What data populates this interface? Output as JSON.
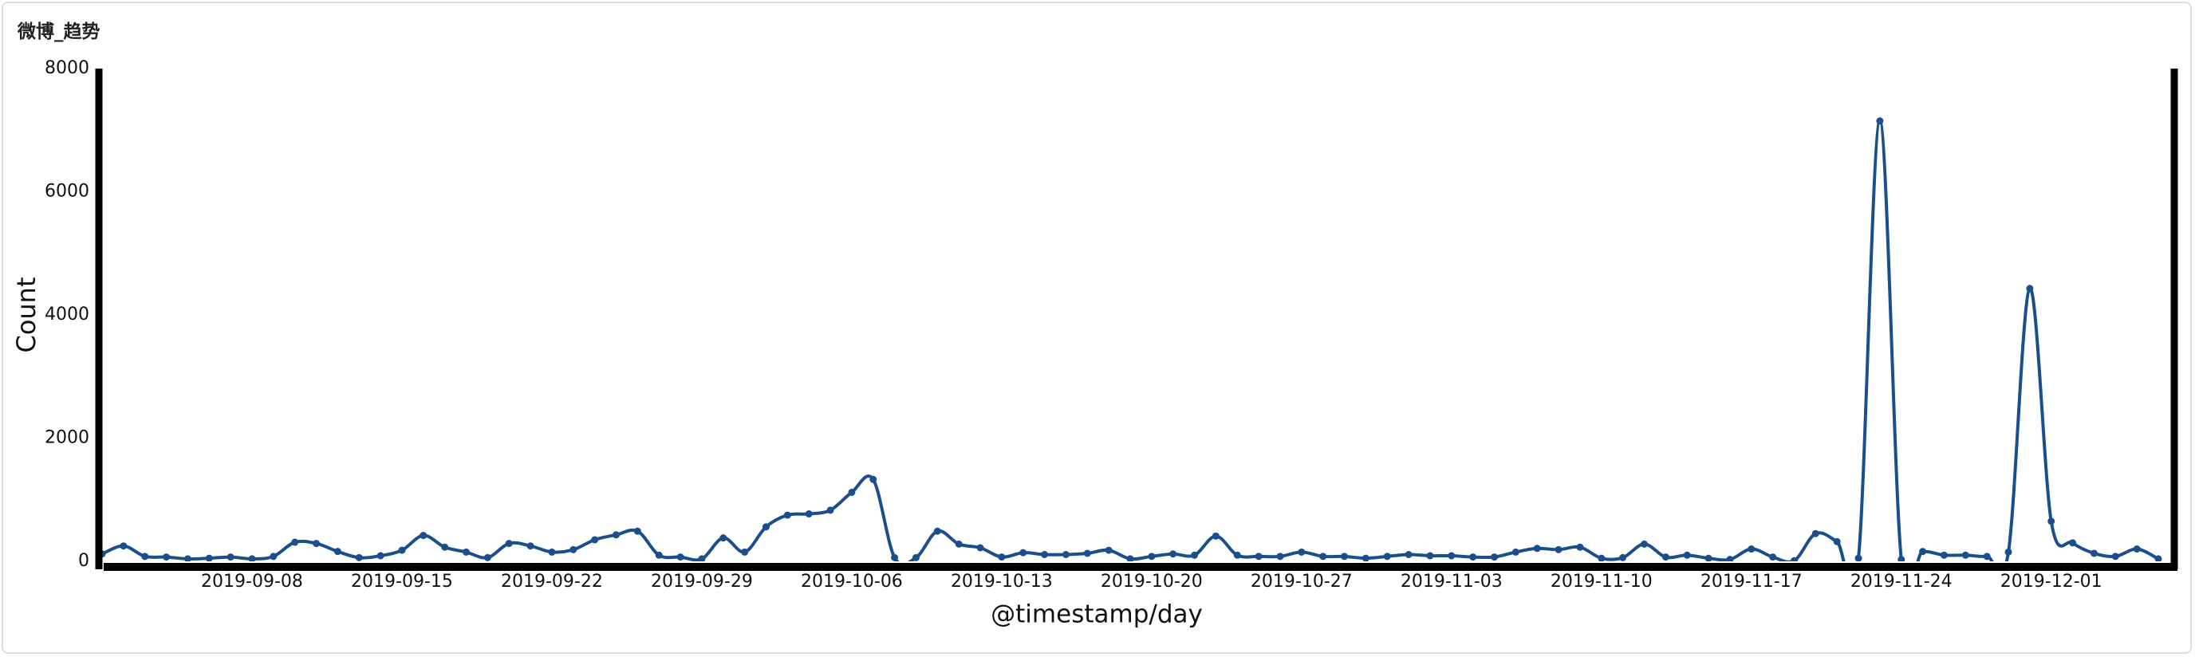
{
  "chart_data": {
    "type": "line",
    "title": "微博_趋势",
    "x_label": "@timestamp/day",
    "y_label": "Count",
    "color": "#1a4f8c",
    "x": [
      "2019-09-01",
      "2019-09-02",
      "2019-09-03",
      "2019-09-04",
      "2019-09-05",
      "2019-09-06",
      "2019-09-07",
      "2019-09-08",
      "2019-09-09",
      "2019-09-10",
      "2019-09-11",
      "2019-09-12",
      "2019-09-13",
      "2019-09-14",
      "2019-09-15",
      "2019-09-16",
      "2019-09-17",
      "2019-09-18",
      "2019-09-19",
      "2019-09-20",
      "2019-09-21",
      "2019-09-22",
      "2019-09-23",
      "2019-09-24",
      "2019-09-25",
      "2019-09-26",
      "2019-09-27",
      "2019-09-28",
      "2019-09-29",
      "2019-09-30",
      "2019-10-01",
      "2019-10-02",
      "2019-10-03",
      "2019-10-04",
      "2019-10-05",
      "2019-10-06",
      "2019-10-07",
      "2019-10-08",
      "2019-10-09",
      "2019-10-10",
      "2019-10-11",
      "2019-10-12",
      "2019-10-13",
      "2019-10-14",
      "2019-10-15",
      "2019-10-16",
      "2019-10-17",
      "2019-10-18",
      "2019-10-19",
      "2019-10-20",
      "2019-10-21",
      "2019-10-22",
      "2019-10-23",
      "2019-10-24",
      "2019-10-25",
      "2019-10-26",
      "2019-10-27",
      "2019-10-28",
      "2019-10-29",
      "2019-10-30",
      "2019-10-31",
      "2019-11-01",
      "2019-11-02",
      "2019-11-03",
      "2019-11-04",
      "2019-11-05",
      "2019-11-06",
      "2019-11-07",
      "2019-11-08",
      "2019-11-09",
      "2019-11-10",
      "2019-11-11",
      "2019-11-12",
      "2019-11-13",
      "2019-11-14",
      "2019-11-15",
      "2019-11-16",
      "2019-11-17",
      "2019-11-18",
      "2019-11-19",
      "2019-11-20",
      "2019-11-21",
      "2019-11-22",
      "2019-11-23",
      "2019-11-24",
      "2019-11-25",
      "2019-11-26",
      "2019-11-27",
      "2019-11-28",
      "2019-11-29",
      "2019-11-30",
      "2019-12-01",
      "2019-12-02",
      "2019-12-03",
      "2019-12-04",
      "2019-12-05",
      "2019-12-06"
    ],
    "values": [
      120,
      250,
      80,
      70,
      40,
      50,
      70,
      40,
      80,
      310,
      290,
      160,
      60,
      90,
      180,
      420,
      230,
      150,
      60,
      290,
      250,
      150,
      190,
      350,
      430,
      490,
      100,
      70,
      40,
      380,
      150,
      560,
      750,
      770,
      830,
      1120,
      1330,
      60,
      60,
      490,
      280,
      220,
      70,
      140,
      110,
      110,
      130,
      180,
      40,
      80,
      120,
      100,
      410,
      100,
      80,
      80,
      150,
      80,
      80,
      50,
      80,
      110,
      90,
      90,
      70,
      70,
      150,
      210,
      190,
      230,
      50,
      60,
      280,
      70,
      100,
      50,
      30,
      200,
      70,
      10,
      450,
      320,
      50,
      7150,
      30,
      160,
      100,
      100,
      80,
      150,
      4430,
      650,
      300,
      130,
      80,
      200,
      40
    ],
    "xlim": [
      "2019-09-01",
      "2019-12-06"
    ],
    "xticks": [
      "2019-09-08",
      "2019-09-15",
      "2019-09-22",
      "2019-09-29",
      "2019-10-06",
      "2019-10-13",
      "2019-10-20",
      "2019-10-27",
      "2019-11-03",
      "2019-11-10",
      "2019-11-17",
      "2019-11-24",
      "2019-12-01"
    ],
    "ylim": [
      0,
      8000
    ],
    "yticks": [
      0,
      2000,
      4000,
      6000,
      8000
    ],
    "grid": false
  }
}
